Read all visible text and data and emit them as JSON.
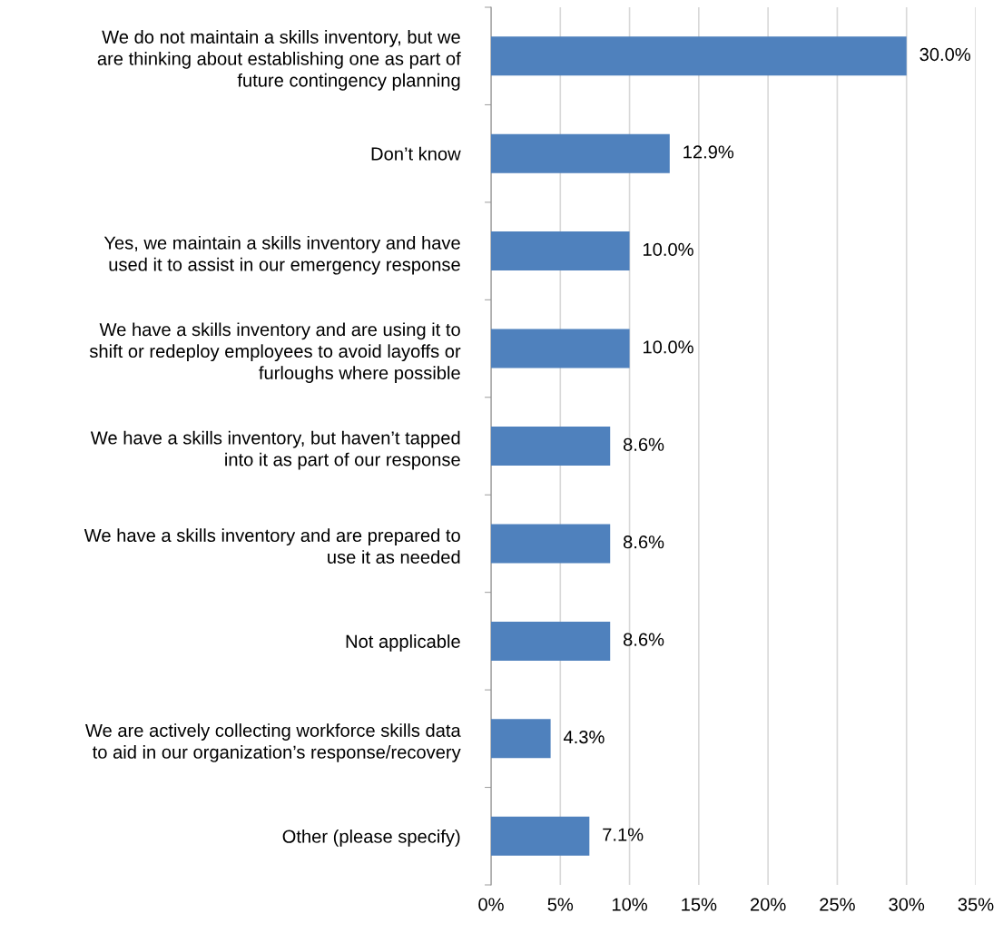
{
  "chart_data": {
    "type": "bar",
    "orientation": "horizontal",
    "categories": [
      "We do not maintain a skills inventory, but we\nare thinking about establishing one as part of\nfuture contingency planning",
      "Don’t know",
      "Yes, we maintain a skills inventory and have\nused it to assist in our emergency response",
      "We have a skills inventory and are using it to\nshift or redeploy employees to avoid layoffs or\nfurloughs where possible",
      "We have a skills inventory, but haven’t tapped\ninto it as part of our response",
      "We have a skills inventory and are prepared to\nuse it as needed",
      "Not applicable",
      "We are actively collecting workforce skills data\nto aid in our organization’s response/recovery",
      "Other (please specify)"
    ],
    "values": [
      30.0,
      12.9,
      10.0,
      10.0,
      8.6,
      8.6,
      8.6,
      4.3,
      7.1
    ],
    "value_labels": [
      "30.0%",
      "12.9%",
      "10.0%",
      "10.0%",
      "8.6%",
      "8.6%",
      "8.6%",
      "4.3%",
      "7.1%"
    ],
    "color": "#4f81bd",
    "xlim": [
      0,
      35
    ],
    "xticks": [
      {
        "value": 0,
        "label": "0%"
      },
      {
        "value": 5,
        "label": "5%"
      },
      {
        "value": 10,
        "label": "10%"
      },
      {
        "value": 15,
        "label": "15%"
      },
      {
        "value": 20,
        "label": "20%"
      },
      {
        "value": 25,
        "label": "25%"
      },
      {
        "value": 30,
        "label": "30%"
      },
      {
        "value": 35,
        "label": "35%"
      }
    ],
    "grid": "x"
  }
}
